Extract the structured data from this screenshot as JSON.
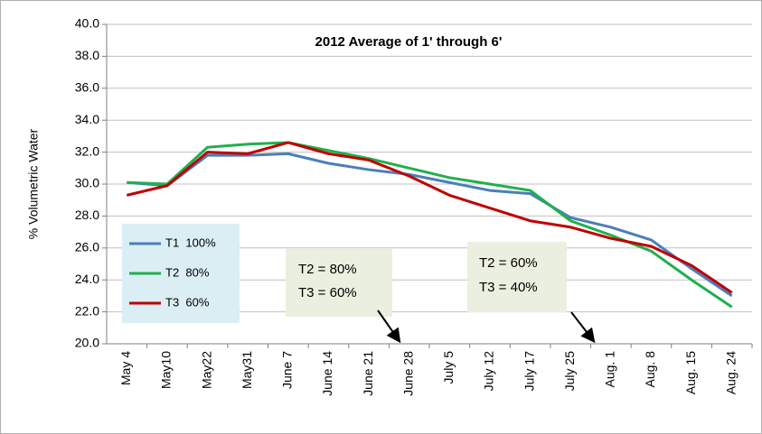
{
  "chart_data": {
    "type": "line",
    "title": "2012  Average of 1' through 6'",
    "y_label": "% Volumetric Water",
    "categories": [
      "May 4",
      "May10",
      "May22",
      "May31",
      "June 7",
      "June 14",
      "June 21",
      "June 28",
      "July 5",
      "July 12",
      "July 17",
      "July 25",
      "Aug. 1",
      "Aug. 8",
      "Aug. 15",
      "Aug. 24"
    ],
    "series": [
      {
        "name": "T1  100%",
        "color": "#4a7ebb",
        "values": [
          30.1,
          29.9,
          31.8,
          31.8,
          31.9,
          31.3,
          30.9,
          30.6,
          30.1,
          29.6,
          29.4,
          27.9,
          27.3,
          26.5,
          24.7,
          23.0
        ]
      },
      {
        "name": "T2  80%",
        "color": "#1fb04c",
        "values": [
          30.1,
          30.0,
          32.3,
          32.5,
          32.6,
          32.1,
          31.6,
          31.0,
          30.4,
          30.0,
          29.6,
          27.7,
          26.8,
          25.8,
          24.0,
          22.3
        ]
      },
      {
        "name": "T3  60%",
        "color": "#c00000",
        "values": [
          29.3,
          29.9,
          32.0,
          31.9,
          32.6,
          31.9,
          31.5,
          30.5,
          29.3,
          28.5,
          27.7,
          27.3,
          26.6,
          26.1,
          24.9,
          23.2
        ]
      }
    ],
    "ylim": [
      20,
      40
    ],
    "yticks": [
      {
        "value": 20,
        "label": "20.0"
      },
      {
        "value": 22,
        "label": "22.0"
      },
      {
        "value": 24,
        "label": "24.0"
      },
      {
        "value": 26,
        "label": "26.0"
      },
      {
        "value": 28,
        "label": "28.0"
      },
      {
        "value": 30,
        "label": "30.0"
      },
      {
        "value": 32,
        "label": "32.0"
      },
      {
        "value": 34,
        "label": "34.0"
      },
      {
        "value": 36,
        "label": "36.0"
      },
      {
        "value": 38,
        "label": "38.0"
      },
      {
        "value": 40,
        "label": "40.0"
      }
    ],
    "grid": true,
    "legend": "lower-left",
    "annotations": [
      {
        "lines": [
          "T2 = 80%",
          "T3 = 60%"
        ]
      },
      {
        "lines": [
          "T2 = 60%",
          "T3 = 40%"
        ]
      }
    ]
  }
}
